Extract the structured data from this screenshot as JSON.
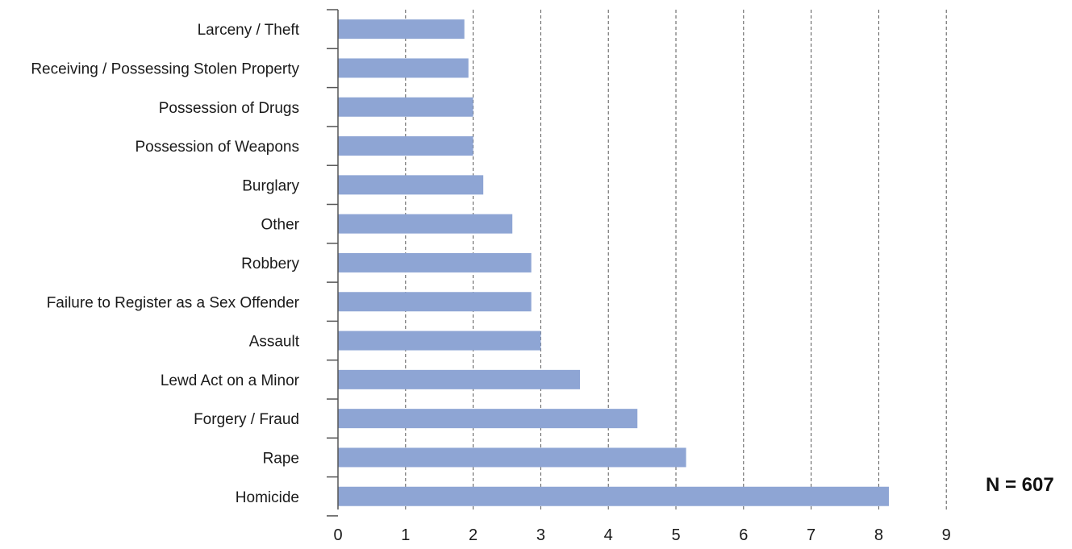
{
  "chart_data": {
    "type": "bar",
    "orientation": "horizontal",
    "categories": [
      "Larceny / Theft",
      "Receiving / Possessing Stolen Property",
      "Possession of Drugs",
      "Possession of Weapons",
      "Burglary",
      "Other",
      "Robbery",
      "Failure to Register as a Sex Offender",
      "Assault",
      "Lewd Act on a Minor",
      "Forgery / Fraud",
      "Rape",
      "Homicide"
    ],
    "values": [
      1.87,
      1.93,
      2.0,
      2.0,
      2.15,
      2.58,
      2.86,
      2.86,
      3.0,
      3.58,
      4.43,
      5.15,
      8.15
    ],
    "xticks": [
      "0",
      "1",
      "2",
      "3",
      "4",
      "5",
      "6",
      "7",
      "8",
      "9"
    ],
    "xlim": [
      0,
      9
    ],
    "grid": true,
    "bar_color": "#8ea5d4",
    "grid_color": "#555555",
    "axis_color": "#555555"
  },
  "annotation": "N = 607"
}
